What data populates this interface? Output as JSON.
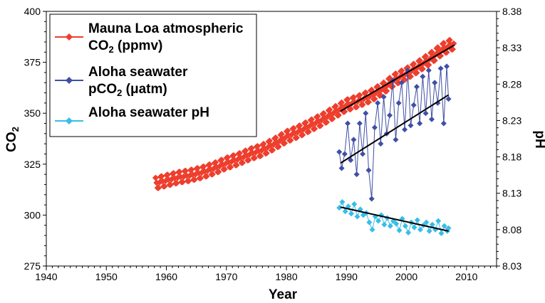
{
  "chart_data": {
    "type": "scatter",
    "xlabel": "Year",
    "ylabel_left": "CO",
    "ylabel_left_sub": "2",
    "ylabel_right": "pH",
    "xlim": [
      1940,
      2015
    ],
    "ylim_left": [
      275,
      400
    ],
    "ylim_right": [
      8.03,
      8.38
    ],
    "x_ticks": [
      1940,
      1950,
      1960,
      1970,
      1980,
      1990,
      2000,
      2010
    ],
    "y_ticks_left": [
      275,
      300,
      325,
      350,
      375,
      400
    ],
    "y_ticks_right": [
      "8.03",
      "8.08",
      "8.13",
      "8.18",
      "8.23",
      "8.28",
      "8.33",
      "8.38"
    ],
    "legend_position": "top-left",
    "legend": [
      {
        "line1": "Mauna Loa atmospheric",
        "line2_pre": "CO",
        "line2_sub": "2",
        "line2_post": " (ppmv)",
        "color": "#ee3e2d",
        "series": "mauna_loa"
      },
      {
        "line1": "Aloha seawater",
        "line2_pre": "pCO",
        "line2_sub": "2",
        "line2_post": " (μatm)",
        "color": "#3f4fa6",
        "series": "aloha_pco2"
      },
      {
        "line1": "Aloha seawater pH",
        "line2_pre": "",
        "line2_sub": "",
        "line2_post": "",
        "color": "#38bde8",
        "series": "aloha_ph"
      }
    ],
    "series": [
      {
        "key": "mauna_loa",
        "axis": "left",
        "color": "#ee3e2d",
        "x_start": 1958.2,
        "x_end": 2008.0,
        "points": [
          [
            1958,
            315.5
          ],
          [
            1960,
            317
          ],
          [
            1962,
            318.5
          ],
          [
            1964,
            319.5
          ],
          [
            1966,
            321
          ],
          [
            1968,
            323
          ],
          [
            1970,
            325.5
          ],
          [
            1972,
            327.5
          ],
          [
            1974,
            330
          ],
          [
            1976,
            332
          ],
          [
            1978,
            335
          ],
          [
            1980,
            338.5
          ],
          [
            1982,
            341
          ],
          [
            1984,
            344
          ],
          [
            1986,
            347
          ],
          [
            1988,
            350.5
          ],
          [
            1990,
            354
          ],
          [
            1992,
            356
          ],
          [
            1994,
            358.5
          ],
          [
            1996,
            362
          ],
          [
            1998,
            366.5
          ],
          [
            2000,
            369.5
          ],
          [
            2002,
            373
          ],
          [
            2004,
            377
          ],
          [
            2006,
            381.5
          ],
          [
            2008,
            384.5
          ]
        ],
        "seasonal_amplitude": 3.0
      },
      {
        "key": "aloha_pco2",
        "axis": "left",
        "color": "#3f4fa6",
        "x_start": 1988.8,
        "x_end": 2007.0,
        "points": [
          [
            1988.8,
            331
          ],
          [
            1989.2,
            323
          ],
          [
            1989.7,
            330
          ],
          [
            1990.2,
            345
          ],
          [
            1990.7,
            327
          ],
          [
            1991.2,
            337
          ],
          [
            1991.7,
            320
          ],
          [
            1992.2,
            345
          ],
          [
            1992.7,
            330
          ],
          [
            1993.2,
            350
          ],
          [
            1993.7,
            322
          ],
          [
            1994.2,
            308
          ],
          [
            1994.7,
            343
          ],
          [
            1995.2,
            355
          ],
          [
            1995.7,
            335
          ],
          [
            1996.2,
            358
          ],
          [
            1996.7,
            340
          ],
          [
            1997.2,
            349
          ],
          [
            1997.7,
            366
          ],
          [
            1998.2,
            337
          ],
          [
            1998.7,
            355
          ],
          [
            1999.2,
            365
          ],
          [
            1999.7,
            342
          ],
          [
            2000.2,
            371
          ],
          [
            2000.7,
            344
          ],
          [
            2001.2,
            354
          ],
          [
            2001.7,
            363
          ],
          [
            2002.2,
            345
          ],
          [
            2002.7,
            368
          ],
          [
            2003.2,
            350
          ],
          [
            2003.7,
            371
          ],
          [
            2004.2,
            347
          ],
          [
            2004.7,
            365
          ],
          [
            2005.2,
            355
          ],
          [
            2005.7,
            372
          ],
          [
            2006.2,
            345
          ],
          [
            2006.7,
            373
          ],
          [
            2007.0,
            357
          ]
        ],
        "trend": [
          [
            1989,
            325.5
          ],
          [
            2007,
            359
          ]
        ]
      },
      {
        "key": "aloha_ph",
        "axis": "right",
        "color": "#38bde8",
        "x_start": 1988.8,
        "x_end": 2007.0,
        "points": [
          [
            1988.8,
            8.11
          ],
          [
            1989.3,
            8.118
          ],
          [
            1989.8,
            8.105
          ],
          [
            1990.3,
            8.112
          ],
          [
            1990.8,
            8.102
          ],
          [
            1991.3,
            8.115
          ],
          [
            1991.8,
            8.098
          ],
          [
            1992.3,
            8.108
          ],
          [
            1992.8,
            8.1
          ],
          [
            1993.3,
            8.103
          ],
          [
            1993.8,
            8.09
          ],
          [
            1994.3,
            8.08
          ],
          [
            1994.8,
            8.098
          ],
          [
            1995.3,
            8.092
          ],
          [
            1995.8,
            8.1
          ],
          [
            1996.3,
            8.087
          ],
          [
            1996.8,
            8.096
          ],
          [
            1997.3,
            8.085
          ],
          [
            1997.8,
            8.092
          ],
          [
            1998.3,
            8.088
          ],
          [
            1998.8,
            8.079
          ],
          [
            1999.3,
            8.095
          ],
          [
            1999.8,
            8.085
          ],
          [
            2000.3,
            8.076
          ],
          [
            2000.8,
            8.09
          ],
          [
            2001.3,
            8.083
          ],
          [
            2001.8,
            8.093
          ],
          [
            2002.3,
            8.08
          ],
          [
            2002.8,
            8.086
          ],
          [
            2003.3,
            8.09
          ],
          [
            2003.8,
            8.078
          ],
          [
            2004.3,
            8.087
          ],
          [
            2004.8,
            8.08
          ],
          [
            2005.3,
            8.092
          ],
          [
            2005.8,
            8.075
          ],
          [
            2006.3,
            8.085
          ],
          [
            2006.8,
            8.078
          ],
          [
            2007.0,
            8.082
          ]
        ],
        "trend": [
          [
            1989,
            8.111
          ],
          [
            2007,
            8.078
          ]
        ]
      }
    ],
    "trendline_color": "#000000"
  }
}
